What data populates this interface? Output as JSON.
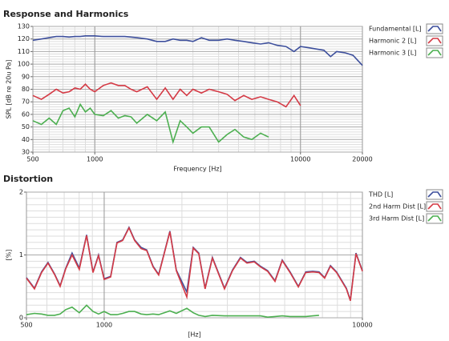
{
  "chart_data": [
    {
      "type": "line",
      "title": "Response and Harmonics",
      "xlabel": "Frequency [Hz]",
      "ylabel": "SPL [dB re 20u Pa]",
      "xscale": "log",
      "grid": true,
      "legend": "right",
      "x": [
        500,
        550,
        600,
        650,
        700,
        750,
        800,
        850,
        900,
        950,
        1000,
        1100,
        1200,
        1300,
        1400,
        1500,
        1600,
        1800,
        2000,
        2200,
        2400,
        2600,
        2800,
        3000,
        3300,
        3600,
        4000,
        4400,
        4800,
        5300,
        5800,
        6400,
        7000,
        7700,
        8500,
        9300,
        10000,
        11000,
        12000,
        13000,
        14000,
        15000,
        16500,
        18000,
        20000
      ],
      "xlim": [
        500,
        20000
      ],
      "xticks": [
        500,
        1000,
        10000,
        20000
      ],
      "ylim": [
        30,
        130
      ],
      "yticks": [
        30,
        40,
        50,
        60,
        70,
        80,
        90,
        100,
        110,
        120,
        130
      ],
      "series": [
        {
          "name": "Fundamental [L]",
          "color": "#3d4f9c",
          "values": [
            119,
            120,
            121,
            122,
            122,
            121.5,
            122,
            122,
            122.5,
            122.5,
            122.5,
            122,
            122,
            122,
            122,
            121.5,
            121,
            120,
            118,
            118,
            120,
            119,
            119,
            118,
            121,
            119,
            119,
            120,
            119,
            118,
            117,
            116,
            117,
            115,
            114,
            110,
            114,
            113,
            112,
            111,
            106,
            110,
            109,
            107,
            99
          ]
        },
        {
          "name": "Harmonic 2 [L]",
          "color": "#d43a45",
          "values": [
            75,
            72,
            76,
            80,
            77,
            78,
            81,
            80,
            84,
            80,
            78,
            83,
            85,
            83,
            83,
            80,
            78,
            82,
            72,
            81,
            72,
            80,
            75,
            80,
            77,
            80,
            78,
            76,
            71,
            75,
            72,
            74,
            72,
            70,
            66,
            75,
            67,
            null,
            null,
            null,
            null,
            null,
            null,
            null,
            null
          ]
        },
        {
          "name": "Harmonic 3 [L]",
          "color": "#4caf50",
          "values": [
            55,
            52,
            57,
            52,
            63,
            65,
            58,
            68,
            62,
            65,
            60,
            59,
            63,
            57,
            59,
            58,
            53,
            60,
            55,
            62,
            38,
            55,
            50,
            45,
            50,
            50,
            38,
            44,
            48,
            42,
            40,
            45,
            42,
            null,
            null,
            null,
            null,
            null,
            null,
            null,
            null,
            null,
            null,
            null,
            null
          ]
        }
      ]
    },
    {
      "type": "line",
      "title": "Distortion",
      "xlabel": "[Hz]",
      "ylabel": "[%]",
      "xscale": "log",
      "grid": true,
      "legend": "right",
      "x": [
        500,
        537,
        572,
        606,
        642,
        675,
        710,
        751,
        801,
        855,
        905,
        951,
        1000,
        1059,
        1121,
        1179,
        1248,
        1312,
        1390,
        1461,
        1546,
        1626,
        1797,
        1903,
        2089,
        2212,
        2324,
        2459,
        2625,
        2923,
        3141,
        3370,
        3572,
        3812,
        4028,
        4296,
        4588,
        4893,
        5249,
        5647,
        6030,
        6425,
        6791,
        7143,
        7516,
        7944,
        8668,
        8986,
        9447,
        10000
      ],
      "xlim": [
        500,
        10000
      ],
      "xticks": [
        500,
        1000,
        10000
      ],
      "ylim": [
        0,
        2
      ],
      "yticks": [
        0,
        1,
        2
      ],
      "series": [
        {
          "name": "THD [L]",
          "color": "#3d4f9c",
          "values": [
            0.64,
            0.47,
            0.73,
            0.88,
            0.7,
            0.51,
            0.79,
            1.03,
            0.79,
            1.32,
            0.73,
            1.0,
            0.62,
            0.66,
            1.2,
            1.24,
            1.44,
            1.24,
            1.12,
            1.08,
            0.82,
            0.69,
            1.38,
            0.76,
            0.41,
            1.12,
            1.03,
            0.47,
            0.96,
            0.47,
            0.76,
            0.96,
            0.88,
            0.9,
            0.82,
            0.75,
            0.59,
            0.92,
            0.73,
            0.5,
            0.73,
            0.74,
            0.73,
            0.64,
            0.83,
            0.73,
            0.47,
            0.28,
            1.03,
            0.75
          ]
        },
        {
          "name": "2nd Harm Dist [L]",
          "color": "#d43a45",
          "values": [
            0.63,
            0.46,
            0.72,
            0.87,
            0.69,
            0.5,
            0.78,
            1.0,
            0.77,
            1.31,
            0.72,
            0.99,
            0.61,
            0.65,
            1.19,
            1.23,
            1.43,
            1.23,
            1.1,
            1.07,
            0.81,
            0.68,
            1.37,
            0.75,
            0.33,
            1.11,
            1.02,
            0.46,
            0.95,
            0.46,
            0.75,
            0.95,
            0.87,
            0.89,
            0.81,
            0.74,
            0.58,
            0.91,
            0.72,
            0.49,
            0.72,
            0.73,
            0.72,
            0.63,
            0.82,
            0.72,
            0.46,
            0.27,
            1.02,
            0.74
          ]
        },
        {
          "name": "3rd Harm Dist [L]",
          "color": "#4caf50",
          "values": [
            0.05,
            0.07,
            0.06,
            0.04,
            0.04,
            0.06,
            0.13,
            0.17,
            0.08,
            0.2,
            0.1,
            0.06,
            0.1,
            0.05,
            0.05,
            0.07,
            0.1,
            0.1,
            0.06,
            0.05,
            0.06,
            0.05,
            0.11,
            0.07,
            0.15,
            0.08,
            0.04,
            0.02,
            0.04,
            0.03,
            0.03,
            0.03,
            0.03,
            0.03,
            0.03,
            0.01,
            0.02,
            0.03,
            0.02,
            0.02,
            0.02,
            0.03,
            0.04,
            null,
            null,
            null,
            null,
            null,
            null,
            null
          ]
        }
      ]
    }
  ]
}
